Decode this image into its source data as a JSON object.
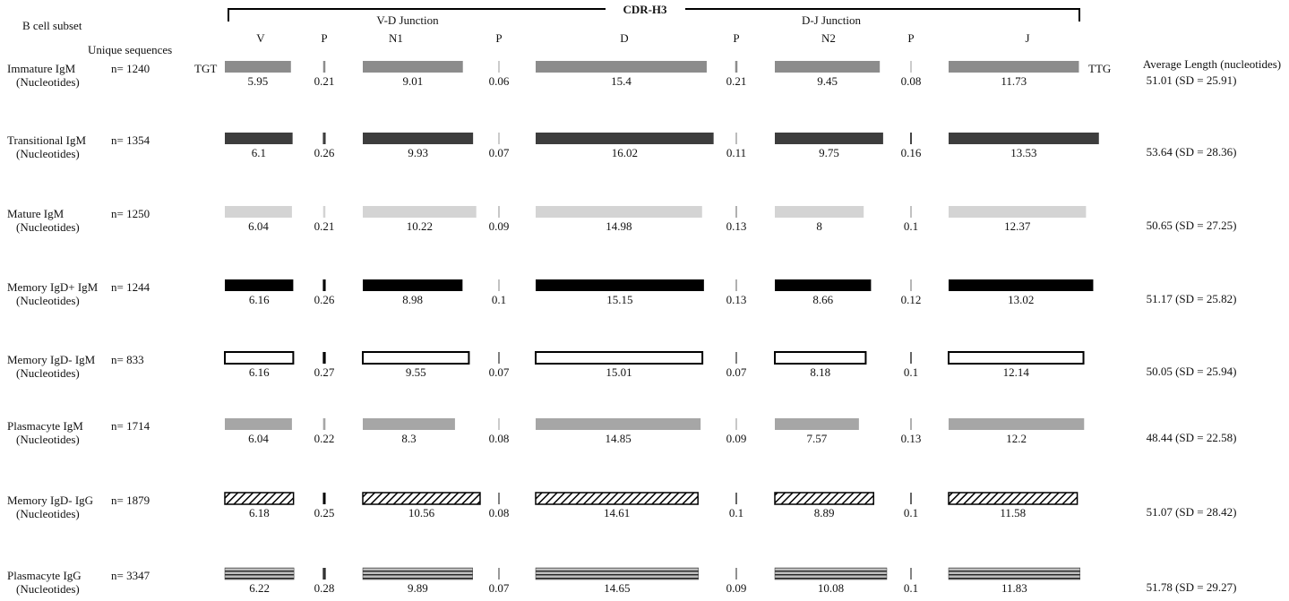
{
  "chart_data": {
    "type": "bar",
    "header": {
      "group_label": "B cell subset",
      "count_label": "Unique sequences",
      "cdr_label": "CDR-H3",
      "vd_label": "V-D Junction",
      "dj_label": "D-J Junction",
      "average_label": "Average Length (nucleotides)",
      "start_codon": "TGT",
      "end_codon": "TTG"
    },
    "segments": [
      "V",
      "P",
      "N1",
      "P",
      "D",
      "P",
      "N2",
      "P",
      "J"
    ],
    "row_sublabel": "(Nucleotides)",
    "rows": [
      {
        "name": "Immature IgM",
        "count": "n= 1240",
        "values": [
          5.95,
          0.21,
          9.01,
          0.06,
          15.4,
          0.21,
          9.45,
          0.08,
          11.73
        ],
        "average": "51.01 (SD = 25.91)",
        "color": "#8c8c8c",
        "pattern": "solid"
      },
      {
        "name": "Transitional IgM",
        "count": "n= 1354",
        "values": [
          6.1,
          0.26,
          9.93,
          0.07,
          16.02,
          0.11,
          9.75,
          0.16,
          13.53
        ],
        "average": "53.64 (SD = 28.36)",
        "color": "#3d3d3d",
        "pattern": "solid"
      },
      {
        "name": "Mature IgM",
        "count": "n= 1250",
        "values": [
          6.04,
          0.21,
          10.22,
          0.09,
          14.98,
          0.13,
          8,
          0.1,
          12.37
        ],
        "average": "50.65 (SD = 27.25)",
        "color": "#d4d4d4",
        "pattern": "solid"
      },
      {
        "name": "Memory IgD+ IgM",
        "count": "n= 1244",
        "values": [
          6.16,
          0.26,
          8.98,
          0.1,
          15.15,
          0.13,
          8.66,
          0.12,
          13.02
        ],
        "average": "51.17 (SD = 25.82)",
        "color": "#000000",
        "pattern": "solid"
      },
      {
        "name": "Memory IgD- IgM",
        "count": "n= 833",
        "values": [
          6.16,
          0.27,
          9.55,
          0.07,
          15.01,
          0.07,
          8.18,
          0.1,
          12.14
        ],
        "average": "50.05 (SD = 25.94)",
        "color": "#ffffff",
        "pattern": "outline"
      },
      {
        "name": "Plasmacyte IgM",
        "count": "n= 1714",
        "values": [
          6.04,
          0.22,
          8.3,
          0.08,
          14.85,
          0.09,
          7.57,
          0.13,
          12.2
        ],
        "average": "48.44 (SD = 22.58)",
        "color": "#a6a6a6",
        "pattern": "solid"
      },
      {
        "name": "Memory IgD- IgG",
        "count": "n= 1879",
        "values": [
          6.18,
          0.25,
          10.56,
          0.08,
          14.61,
          0.1,
          8.89,
          0.1,
          11.58
        ],
        "average": "51.07 (SD = 28.42)",
        "color": "#000000",
        "pattern": "hatch"
      },
      {
        "name": "Plasmacyte IgG",
        "count": "n= 3347",
        "values": [
          6.22,
          0.28,
          9.89,
          0.07,
          14.65,
          0.09,
          10.08,
          0.1,
          11.83
        ],
        "average": "51.78 (SD = 29.27)",
        "color": "#555555",
        "pattern": "stripes"
      }
    ]
  }
}
